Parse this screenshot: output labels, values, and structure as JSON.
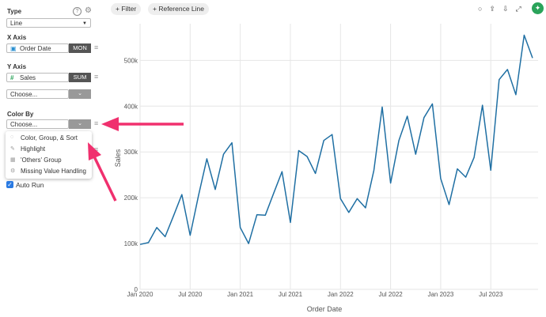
{
  "sidebar": {
    "type_label": "Type",
    "type_value": "Line",
    "x_axis_label": "X Axis",
    "x_axis_field": "Order Date",
    "x_axis_func": "MON",
    "y_axis_label": "Y Axis",
    "y_axis_field": "Sales",
    "y_axis_func": "SUM",
    "y_axis_extra": "Choose...",
    "color_by_label": "Color By",
    "color_by_value": "Choose...",
    "menu": [
      "Color, Group, & Sort",
      "Highlight",
      "'Others' Group",
      "Missing Value Handling"
    ],
    "auto_run": "Auto Run"
  },
  "toolbar": {
    "buttons": [
      "Filter",
      "Reference Line"
    ]
  },
  "chart_data": {
    "type": "line",
    "x_label": "Order Date",
    "y_label": "Sales",
    "color": "#1f6fa3",
    "grid": true,
    "x": [
      "2020-01",
      "2020-02",
      "2020-03",
      "2020-04",
      "2020-05",
      "2020-06",
      "2020-07",
      "2020-08",
      "2020-09",
      "2020-10",
      "2020-11",
      "2020-12",
      "2021-01",
      "2021-02",
      "2021-03",
      "2021-04",
      "2021-05",
      "2021-06",
      "2021-07",
      "2021-08",
      "2021-09",
      "2021-10",
      "2021-11",
      "2021-12",
      "2022-01",
      "2022-02",
      "2022-03",
      "2022-04",
      "2022-05",
      "2022-06",
      "2022-07",
      "2022-08",
      "2022-09",
      "2022-10",
      "2022-11",
      "2022-12",
      "2023-01",
      "2023-02",
      "2023-03",
      "2023-04",
      "2023-05",
      "2023-06",
      "2023-07",
      "2023-08",
      "2023-09",
      "2023-10",
      "2023-11",
      "2023-12"
    ],
    "values": [
      98000,
      102000,
      135000,
      115000,
      160000,
      207000,
      118000,
      205000,
      285000,
      218000,
      295000,
      320000,
      135000,
      100000,
      163000,
      162000,
      210000,
      257000,
      146000,
      303000,
      290000,
      253000,
      325000,
      338000,
      198000,
      168000,
      198000,
      178000,
      260000,
      398000,
      232000,
      325000,
      378000,
      295000,
      375000,
      405000,
      242000,
      185000,
      263000,
      245000,
      288000,
      402000,
      260000,
      458000,
      480000,
      425000,
      555000,
      505000
    ],
    "xlim": [
      "2020-01",
      "2023-12"
    ],
    "xticks": [
      {
        "value": "2020-01",
        "label": "Jan 2020"
      },
      {
        "value": "2020-07",
        "label": "Jul 2020"
      },
      {
        "value": "2021-01",
        "label": "Jan 2021"
      },
      {
        "value": "2021-07",
        "label": "Jul 2021"
      },
      {
        "value": "2022-01",
        "label": "Jan 2022"
      },
      {
        "value": "2022-07",
        "label": "Jul 2022"
      },
      {
        "value": "2023-01",
        "label": "Jan 2023"
      },
      {
        "value": "2023-07",
        "label": "Jul 2023"
      }
    ],
    "ylim": [
      0,
      580000
    ],
    "yticks": [
      0,
      {
        "value": 100000,
        "label": "100k"
      },
      {
        "value": 200000,
        "label": "200k"
      },
      {
        "value": 300000,
        "label": "300k"
      },
      {
        "value": 400000,
        "label": "400k"
      },
      {
        "value": 500000,
        "label": "500k"
      }
    ]
  }
}
